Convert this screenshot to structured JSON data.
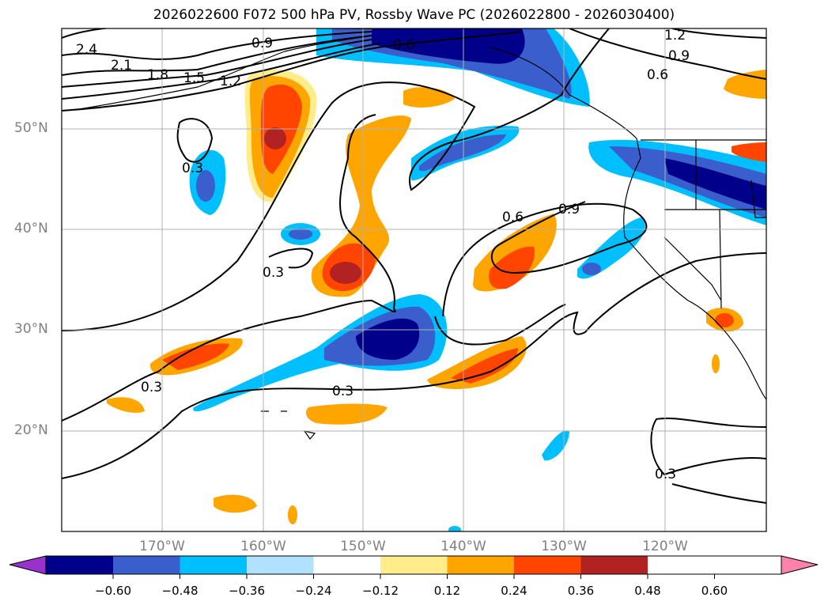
{
  "title": "2026022600 F072 500 hPa PV, Rossby Wave PC (2026022800 - 2026030400)",
  "lat_labels": [
    "50°N",
    "40°N",
    "30°N",
    "20°N"
  ],
  "lon_labels": [
    "170°W",
    "160°W",
    "150°W",
    "140°W",
    "130°W",
    "120°W"
  ],
  "colorbar": {
    "ticks": [
      "−0.60",
      "−0.48",
      "−0.36",
      "−0.24",
      "−0.12",
      "0.12",
      "0.24",
      "0.36",
      "0.48",
      "0.60"
    ],
    "colors": [
      "#9932cc",
      "#00008b",
      "#3a5fcd",
      "#00bfff",
      "#b0e2ff",
      "#ffffff",
      "#ffec8b",
      "#ffa500",
      "#ff4500",
      "#b22222",
      "#ff82ab"
    ]
  },
  "contour_labels": [
    "2.4",
    "2.1",
    "1.8",
    "1.5",
    "1.2",
    "0.9",
    "0.6",
    "1.2",
    "0.9",
    "0.6",
    "0.3",
    "0.3",
    "0.3",
    "0.3",
    "0.6",
    "0.9",
    "0.3"
  ]
}
